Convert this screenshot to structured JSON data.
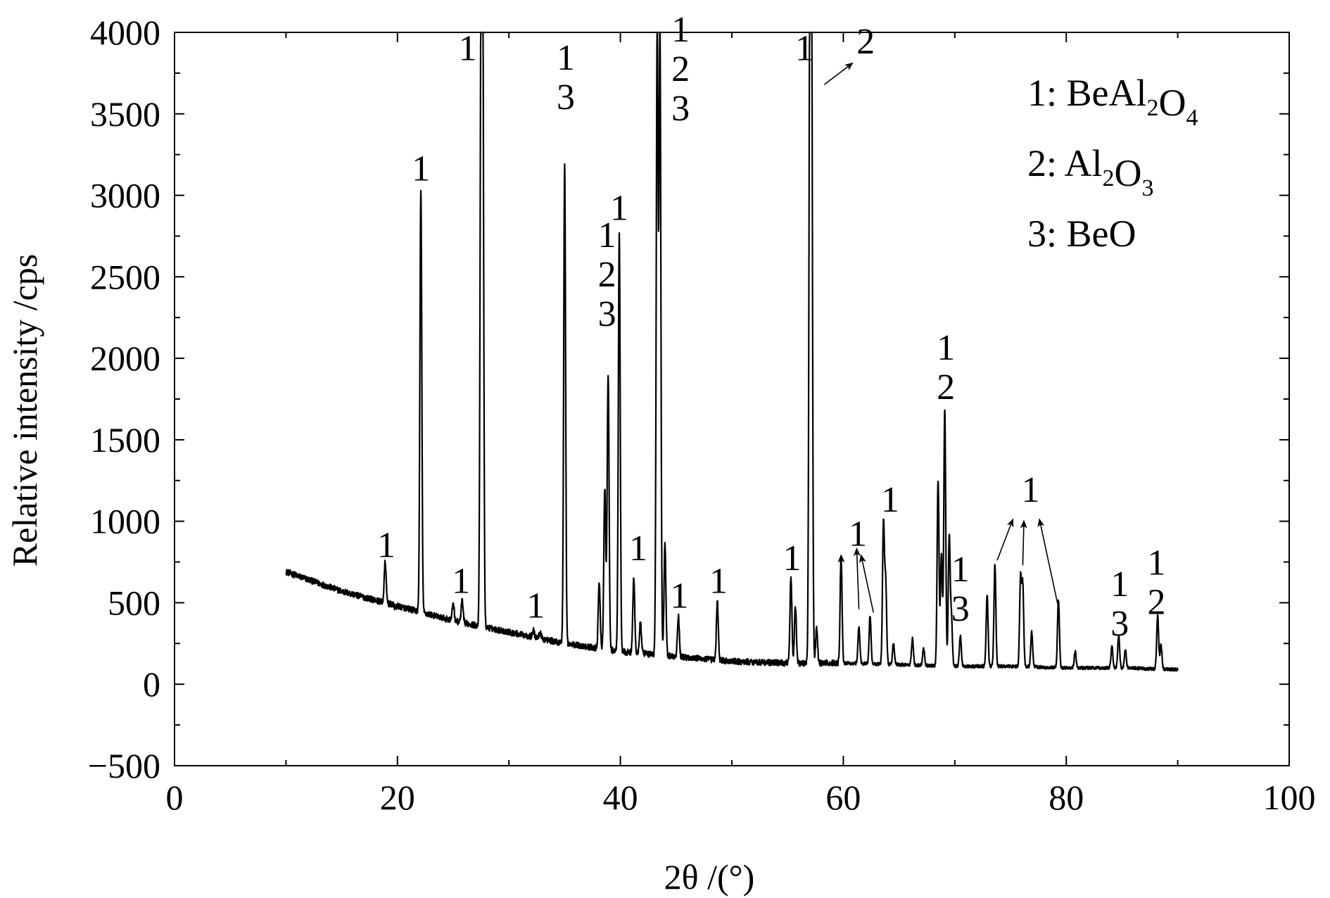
{
  "chart_data": {
    "type": "line",
    "title": "",
    "xlabel": "2θ /(°)",
    "ylabel": "Relative intensity /cps",
    "xlim": [
      0,
      100
    ],
    "ylim": [
      -500,
      4000
    ],
    "x_ticks": [
      0,
      20,
      40,
      60,
      80,
      100
    ],
    "y_ticks": [
      -500,
      0,
      500,
      1000,
      1500,
      2000,
      2500,
      3000,
      3500,
      4000
    ],
    "x_tick_labels": [
      "0",
      "20",
      "40",
      "60",
      "80",
      "100"
    ],
    "y_tick_labels": [
      "−500",
      "0",
      "500",
      "1000",
      "1500",
      "2000",
      "2500",
      "3000",
      "3500",
      "4000"
    ],
    "grid": false,
    "legend_position": "top-right",
    "legend": [
      {
        "key": "1",
        "sep": ": ",
        "parts": [
          [
            "Be",
            false
          ],
          [
            "Al",
            false
          ],
          [
            "2",
            true
          ],
          [
            "O",
            false
          ],
          [
            "4",
            true
          ]
        ]
      },
      {
        "key": "2",
        "sep": ": ",
        "parts": [
          [
            "Al",
            false
          ],
          [
            "2",
            true
          ],
          [
            "O",
            false
          ],
          [
            "3",
            true
          ]
        ]
      },
      {
        "key": "3",
        "sep": ": ",
        "parts": [
          [
            "BeO",
            false
          ]
        ]
      }
    ],
    "background": {
      "x": [
        10,
        15,
        20,
        25,
        30,
        35,
        40,
        45,
        50,
        55,
        60,
        65,
        70,
        75,
        80,
        85,
        90
      ],
      "y": [
        690,
        570,
        480,
        390,
        320,
        250,
        200,
        170,
        140,
        130,
        130,
        120,
        110,
        110,
        100,
        100,
        90
      ]
    },
    "series": [
      {
        "x": [
          18.9,
          19.8,
          22.1,
          25.0,
          25.8,
          27.5,
          27.65,
          32.2,
          32.8,
          35.0,
          38.1,
          38.6,
          38.9,
          39.9,
          41.2,
          41.8,
          43.3,
          43.55,
          44.0,
          45.2,
          48.7,
          55.3,
          55.7,
          57.0,
          57.15,
          57.6,
          59.8,
          61.4,
          62.4,
          63.6,
          63.8,
          64.5,
          66.2,
          67.2,
          68.5,
          68.8,
          69.1,
          69.5,
          69.7,
          70.5,
          72.9,
          73.6,
          75.9,
          76.1,
          76.9,
          79.3,
          80.8,
          84.1,
          84.7,
          85.3,
          88.2,
          88.5
        ],
        "y": [
          750,
          470,
          3030,
          500,
          510,
          4000,
          4000,
          330,
          320,
          3200,
          620,
          1200,
          1900,
          2750,
          660,
          380,
          4000,
          4000,
          870,
          420,
          510,
          660,
          480,
          4000,
          3950,
          340,
          790,
          350,
          420,
          990,
          620,
          250,
          280,
          220,
          1250,
          800,
          1690,
          900,
          400,
          300,
          550,
          730,
          650,
          600,
          320,
          520,
          200,
          230,
          300,
          210,
          420,
          240
        ]
      }
    ],
    "peak_labels": [
      {
        "x": 19.0,
        "y": 780,
        "lines": [
          "1"
        ]
      },
      {
        "x": 22.1,
        "y": 3090,
        "lines": [
          "1"
        ]
      },
      {
        "x": 25.7,
        "y": 560,
        "lines": [
          "1"
        ]
      },
      {
        "x": 26.3,
        "y": 3830,
        "lines": [
          "1"
        ]
      },
      {
        "x": 32.4,
        "y": 410,
        "lines": [
          "1"
        ]
      },
      {
        "x": 35.1,
        "y": 3530,
        "lines": [
          "1",
          "3"
        ]
      },
      {
        "x": 38.8,
        "y": 2200,
        "lines": [
          "1",
          "2",
          "3"
        ]
      },
      {
        "x": 39.9,
        "y": 2850,
        "lines": [
          "1"
        ]
      },
      {
        "x": 41.6,
        "y": 760,
        "lines": [
          "1"
        ]
      },
      {
        "x": 45.3,
        "y": 470,
        "lines": [
          "1"
        ]
      },
      {
        "x": 48.8,
        "y": 560,
        "lines": [
          "1"
        ]
      },
      {
        "x": 45.4,
        "y": 3460,
        "lines": [
          "1",
          "2",
          "3"
        ]
      },
      {
        "x": 55.4,
        "y": 700,
        "lines": [
          "1"
        ]
      },
      {
        "x": 56.5,
        "y": 3830,
        "lines": [
          "1"
        ]
      },
      {
        "x": 61.3,
        "y": 850,
        "lines": [
          "1"
        ]
      },
      {
        "x": 64.2,
        "y": 1060,
        "lines": [
          "1"
        ]
      },
      {
        "x": 69.2,
        "y": 1750,
        "lines": [
          "1",
          "2"
        ]
      },
      {
        "x": 70.5,
        "y": 390,
        "lines": [
          "1",
          "3"
        ]
      },
      {
        "x": 76.8,
        "y": 1120,
        "lines": [
          "1"
        ]
      },
      {
        "x": 84.8,
        "y": 300,
        "lines": [
          "1",
          "3"
        ]
      },
      {
        "x": 88.1,
        "y": 430,
        "lines": [
          "1",
          "2"
        ]
      }
    ],
    "annotations": [
      {
        "text": "2",
        "x": 62.0,
        "y": 3870
      }
    ],
    "arrows": [
      {
        "from": [
          58.3,
          3680
        ],
        "to": [
          60.8,
          3810
        ]
      },
      {
        "from": [
          59.9,
          490
        ],
        "to": [
          59.8,
          790
        ]
      },
      {
        "from": [
          61.4,
          460
        ],
        "to": [
          61.2,
          830
        ]
      },
      {
        "from": [
          62.7,
          440
        ],
        "to": [
          61.6,
          790
        ]
      },
      {
        "from": [
          73.8,
          760
        ],
        "to": [
          75.2,
          1010
        ]
      },
      {
        "from": [
          76.1,
          730
        ],
        "to": [
          76.2,
          1000
        ]
      },
      {
        "from": [
          79.3,
          470
        ],
        "to": [
          77.6,
          1010
        ]
      }
    ]
  }
}
